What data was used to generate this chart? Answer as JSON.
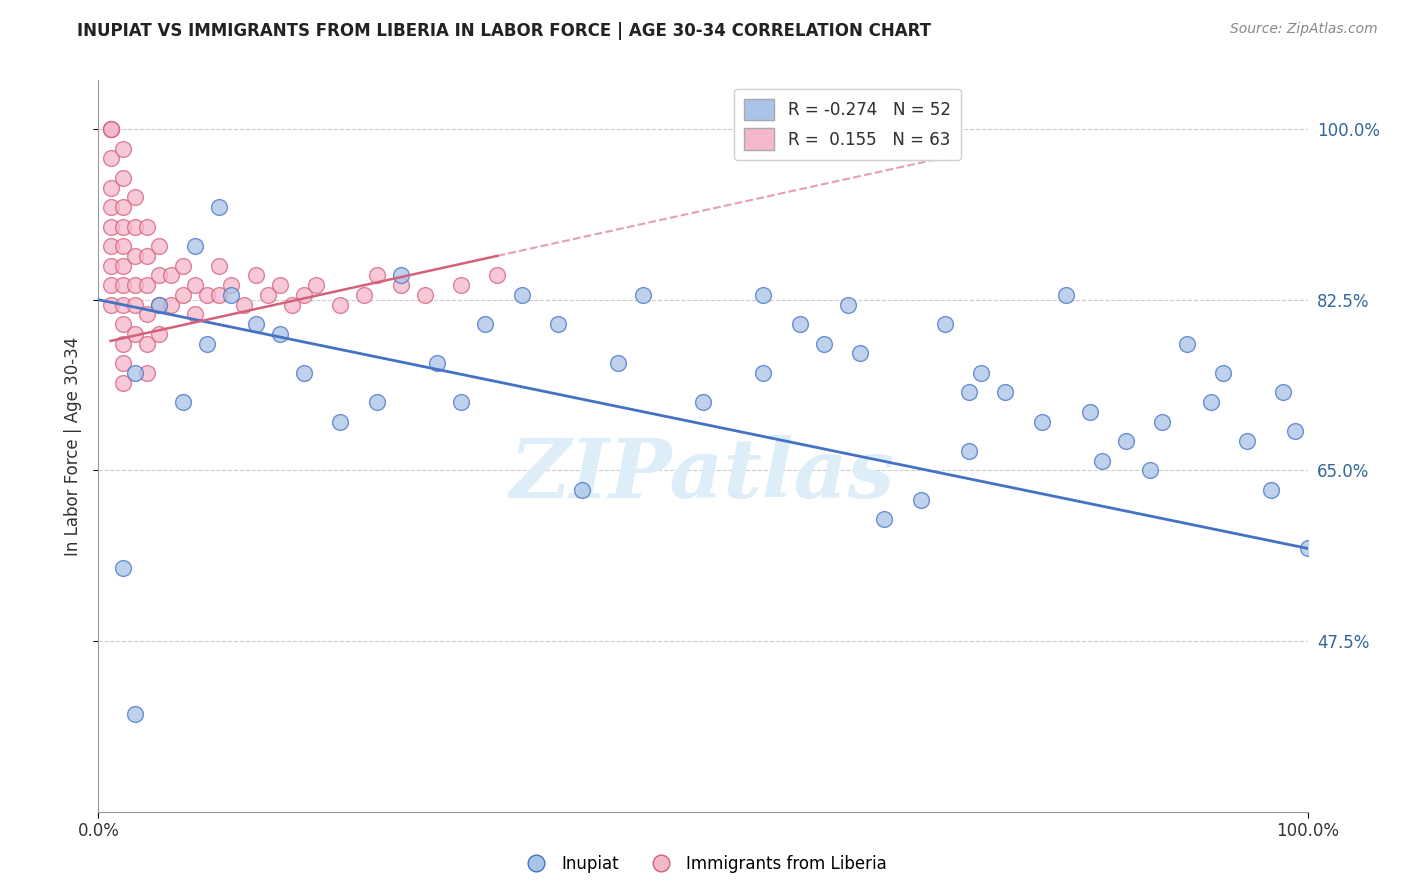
{
  "title": "INUPIAT VS IMMIGRANTS FROM LIBERIA IN LABOR FORCE | AGE 30-34 CORRELATION CHART",
  "source_text": "Source: ZipAtlas.com",
  "ylabel": "In Labor Force | Age 30-34",
  "watermark": "ZIPatlas",
  "xlim": [
    0.0,
    1.0
  ],
  "ylim": [
    0.3,
    1.05
  ],
  "yticks_right": [
    1.0,
    0.825,
    0.65,
    0.475
  ],
  "ytick_labels_right": [
    "100.0%",
    "82.5%",
    "65.0%",
    "47.5%"
  ],
  "legend_r_blue": "-0.274",
  "legend_n_blue": "52",
  "legend_r_pink": "0.155",
  "legend_n_pink": "63",
  "blue_color": "#aac4e8",
  "pink_color": "#f5b8cb",
  "blue_line_color": "#4472c4",
  "pink_line_color": "#d4607a",
  "grid_color": "#cccccc",
  "bg_color": "#ffffff",
  "watermark_color": "#ddeef8",
  "inupiat_x": [
    0.02,
    0.03,
    0.03,
    0.05,
    0.07,
    0.08,
    0.09,
    0.1,
    0.11,
    0.13,
    0.15,
    0.17,
    0.2,
    0.23,
    0.25,
    0.28,
    0.3,
    0.32,
    0.35,
    0.38,
    0.4,
    0.43,
    0.45,
    0.5,
    0.55,
    0.58,
    0.6,
    0.62,
    0.63,
    0.65,
    0.68,
    0.7,
    0.72,
    0.73,
    0.75,
    0.78,
    0.8,
    0.82,
    0.83,
    0.85,
    0.87,
    0.88,
    0.9,
    0.92,
    0.93,
    0.95,
    0.97,
    0.98,
    0.99,
    1.0,
    0.55,
    0.72
  ],
  "inupiat_y": [
    0.55,
    0.4,
    0.75,
    0.82,
    0.72,
    0.88,
    0.78,
    0.92,
    0.83,
    0.8,
    0.79,
    0.75,
    0.7,
    0.72,
    0.85,
    0.76,
    0.72,
    0.8,
    0.83,
    0.8,
    0.63,
    0.76,
    0.83,
    0.72,
    0.75,
    0.8,
    0.78,
    0.82,
    0.77,
    0.6,
    0.62,
    0.8,
    0.67,
    0.75,
    0.73,
    0.7,
    0.83,
    0.71,
    0.66,
    0.68,
    0.65,
    0.7,
    0.78,
    0.72,
    0.75,
    0.68,
    0.63,
    0.73,
    0.69,
    0.57,
    0.83,
    0.73
  ],
  "liberia_x": [
    0.01,
    0.01,
    0.01,
    0.01,
    0.01,
    0.01,
    0.01,
    0.01,
    0.01,
    0.01,
    0.01,
    0.02,
    0.02,
    0.02,
    0.02,
    0.02,
    0.02,
    0.02,
    0.02,
    0.02,
    0.02,
    0.02,
    0.02,
    0.03,
    0.03,
    0.03,
    0.03,
    0.03,
    0.03,
    0.04,
    0.04,
    0.04,
    0.04,
    0.04,
    0.04,
    0.05,
    0.05,
    0.05,
    0.05,
    0.06,
    0.06,
    0.07,
    0.07,
    0.08,
    0.08,
    0.09,
    0.1,
    0.1,
    0.11,
    0.12,
    0.13,
    0.14,
    0.15,
    0.16,
    0.17,
    0.18,
    0.2,
    0.22,
    0.23,
    0.25,
    0.27,
    0.3,
    0.33
  ],
  "liberia_y": [
    1.0,
    1.0,
    1.0,
    0.97,
    0.94,
    0.92,
    0.9,
    0.88,
    0.86,
    0.84,
    0.82,
    0.98,
    0.95,
    0.92,
    0.9,
    0.88,
    0.86,
    0.84,
    0.82,
    0.8,
    0.78,
    0.76,
    0.74,
    0.93,
    0.9,
    0.87,
    0.84,
    0.82,
    0.79,
    0.9,
    0.87,
    0.84,
    0.81,
    0.78,
    0.75,
    0.88,
    0.85,
    0.82,
    0.79,
    0.85,
    0.82,
    0.86,
    0.83,
    0.84,
    0.81,
    0.83,
    0.86,
    0.83,
    0.84,
    0.82,
    0.85,
    0.83,
    0.84,
    0.82,
    0.83,
    0.84,
    0.82,
    0.83,
    0.85,
    0.84,
    0.83,
    0.84,
    0.85
  ],
  "blue_trend_x0": 0.0,
  "blue_trend_y0": 0.825,
  "blue_trend_x1": 1.0,
  "blue_trend_y1": 0.57,
  "pink_trend_x0": 0.0,
  "pink_trend_y0": 0.78,
  "pink_trend_x1": 0.33,
  "pink_trend_y1": 0.87
}
